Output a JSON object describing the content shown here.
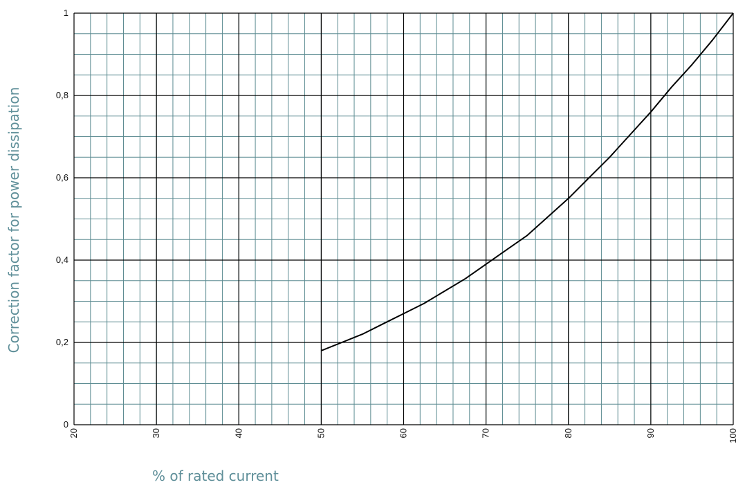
{
  "chart_data": {
    "type": "line",
    "title": "",
    "xlabel": "% of rated current",
    "ylabel": "Correction factor for power dissipation",
    "xlim": [
      20,
      100
    ],
    "ylim": [
      0,
      1
    ],
    "x_ticks": [
      20,
      30,
      40,
      50,
      60,
      70,
      80,
      90,
      100
    ],
    "x_tick_labels": [
      "20",
      "30",
      "40",
      "50",
      "60",
      "70",
      "80",
      "90",
      "100"
    ],
    "y_ticks": [
      0,
      0.2,
      0.4,
      0.6,
      0.8,
      1
    ],
    "y_tick_labels": [
      "0",
      "0,2",
      "0,4",
      "0,6",
      "0,8",
      "1"
    ],
    "grid": true,
    "colors": {
      "minor_grid": "#5a8a90",
      "major_grid": "#000000",
      "curve": "#000000",
      "axis_title": "#5f8f99"
    },
    "series": [
      {
        "x": [
          50,
          52.5,
          55,
          57.5,
          60,
          62.5,
          65,
          67.5,
          70,
          72.5,
          75,
          77.5,
          80,
          82.5,
          85,
          87.5,
          90,
          92.5,
          95,
          97.5,
          100
        ],
        "y": [
          0.18,
          0.2,
          0.22,
          0.245,
          0.27,
          0.295,
          0.325,
          0.355,
          0.39,
          0.425,
          0.46,
          0.505,
          0.55,
          0.6,
          0.65,
          0.705,
          0.76,
          0.82,
          0.875,
          0.935,
          1.0
        ]
      }
    ]
  }
}
